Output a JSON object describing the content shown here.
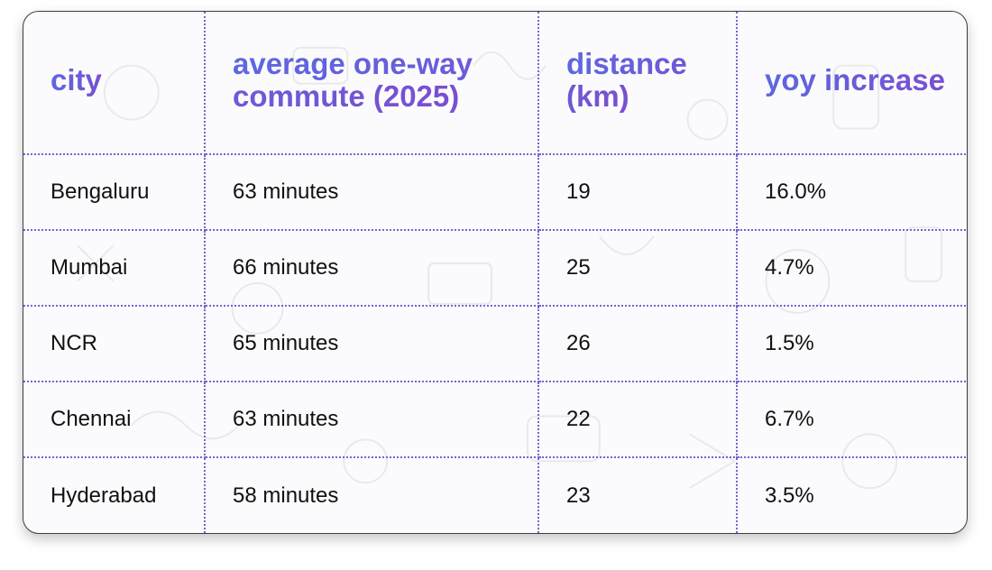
{
  "table": {
    "headers": [
      "city",
      "average one-way commute (2025)",
      "distance (km)",
      "yoy increase"
    ],
    "rows": [
      [
        "Bengaluru",
        "63 minutes",
        "19",
        "16.0%"
      ],
      [
        "Mumbai",
        "66 minutes",
        "25",
        "4.7%"
      ],
      [
        "NCR",
        "65 minutes",
        "26",
        "1.5%"
      ],
      [
        "Chennai",
        "63 minutes",
        "22",
        "6.7%"
      ],
      [
        "Hyderabad",
        "58 minutes",
        "23",
        "3.5%"
      ]
    ]
  },
  "colors": {
    "header_gradient_start": "#5c68e0",
    "header_gradient_end": "#7a4fd0",
    "grid_line": "#7b63c9",
    "text": "#111111"
  }
}
